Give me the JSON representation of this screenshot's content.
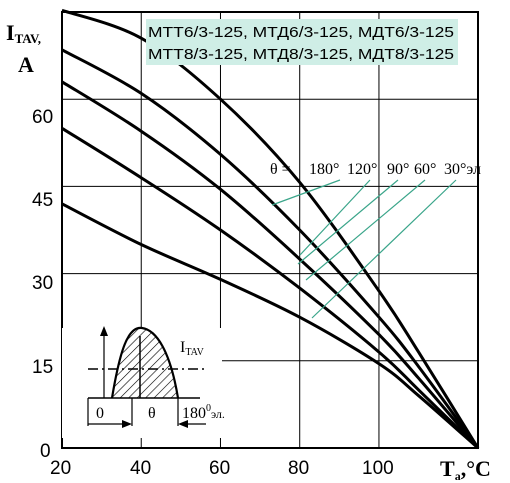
{
  "chart_data": {
    "type": "line",
    "ylabel_main": "I",
    "ylabel_sub": "TAV,",
    "ylabel_unit": "A",
    "xlabel_main": "T",
    "xlabel_sub": "a",
    "xlabel_unit": ",°C",
    "xlim": [
      20,
      125
    ],
    "ylim": [
      0,
      75
    ],
    "x_ticks": [
      "20",
      "40",
      "60",
      "80",
      "100"
    ],
    "y_ticks": [
      "0",
      "15",
      "30",
      "45",
      "60"
    ],
    "grid": true,
    "devices_line1": "МТТ6/3-125, МТД6/3-125, МДТ6/3-125",
    "devices_line2": "МТТ8/3-125, МТД8/3-125, МДТ8/3-125",
    "theta_prefix": "θ = ",
    "theta_labels": [
      "180°",
      "120°",
      "90°",
      "60°",
      "30°эл"
    ],
    "series": [
      {
        "name": "180°",
        "x": [
          20,
          40,
          60,
          80,
          100,
          110,
          125
        ],
        "y": [
          75.3,
          70.5,
          60,
          45.7,
          27,
          16.5,
          0
        ]
      },
      {
        "name": "120°",
        "x": [
          20,
          40,
          60,
          80,
          100,
          110,
          125
        ],
        "y": [
          68.5,
          61,
          50.5,
          37.5,
          22.5,
          14,
          0
        ]
      },
      {
        "name": "90°",
        "x": [
          20,
          40,
          60,
          80,
          100,
          110,
          125
        ],
        "y": [
          63,
          54.5,
          44.5,
          32.5,
          19.5,
          12,
          0
        ]
      },
      {
        "name": "60°",
        "x": [
          20,
          40,
          60,
          80,
          100,
          110,
          125
        ],
        "y": [
          55,
          46.5,
          37.5,
          27.5,
          16.5,
          10,
          0
        ]
      },
      {
        "name": "30°эл",
        "x": [
          20,
          40,
          60,
          80,
          100,
          110,
          125
        ],
        "y": [
          42,
          35,
          29,
          22.5,
          14.5,
          9,
          0
        ]
      }
    ],
    "inset": {
      "current_label": "I",
      "current_sub": "TAV",
      "zero_label": "0",
      "theta_label": "θ",
      "end_label": "180",
      "end_sup": "0",
      "end_unit": "эл."
    },
    "colors": {
      "curves": "#000000",
      "grid": "#000000",
      "leaders": "#3aa58a",
      "legend_box": "#cfeee6"
    }
  }
}
